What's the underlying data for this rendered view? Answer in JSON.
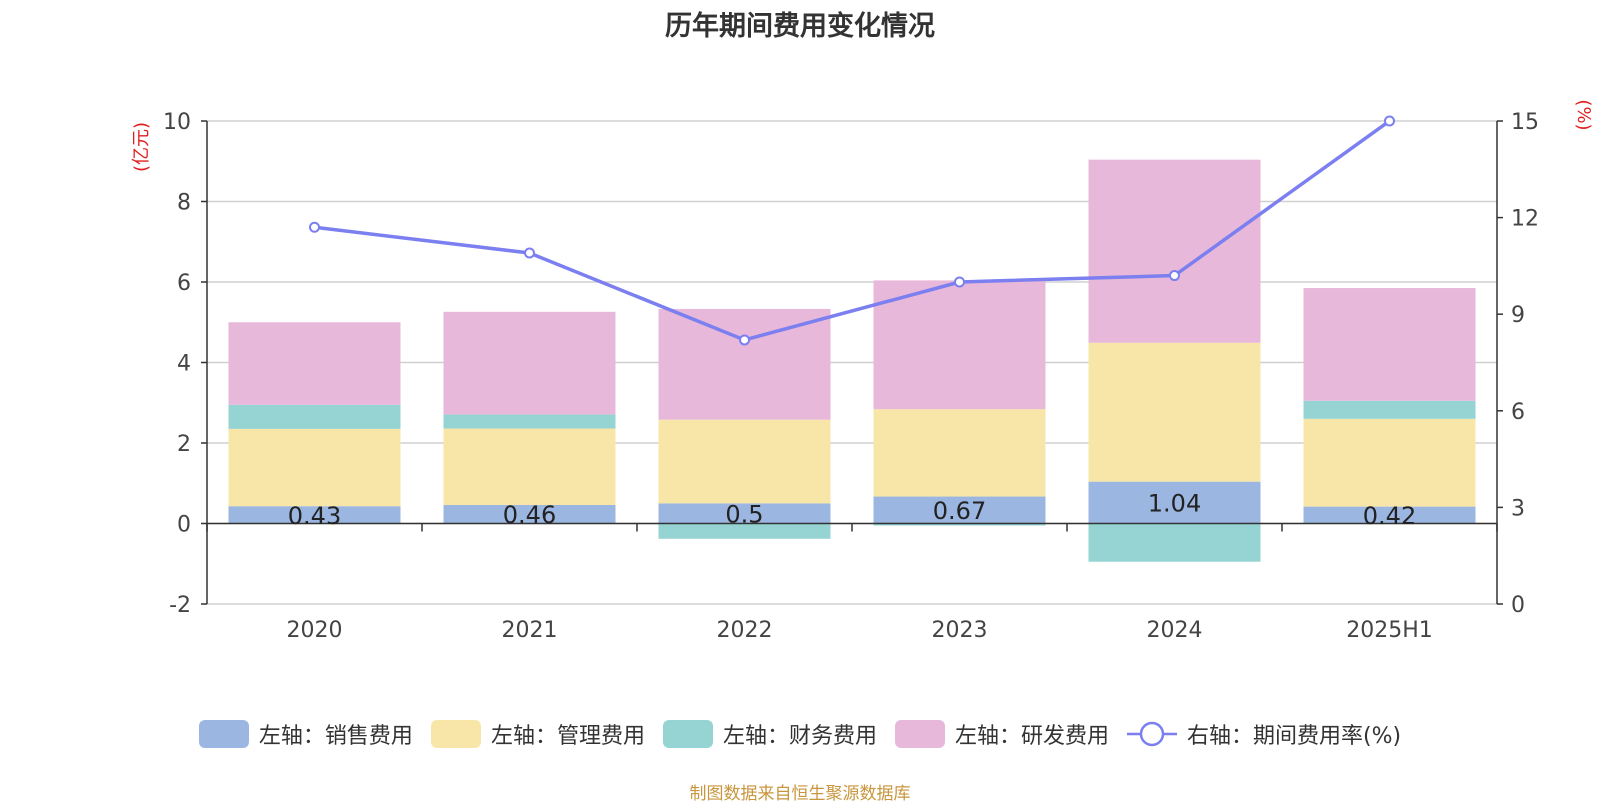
{
  "chart_data": {
    "type": "bar",
    "title": "历年期间费用变化情况",
    "categories": [
      "2020",
      "2021",
      "2022",
      "2023",
      "2024",
      "2025H1"
    ],
    "y_left": {
      "label": "(亿元)",
      "range": [
        -2,
        10
      ],
      "ticks": [
        -2,
        0,
        2,
        4,
        6,
        8,
        10
      ]
    },
    "y_right": {
      "label": "(%)",
      "range": [
        0,
        15
      ],
      "ticks": [
        0,
        3,
        6,
        9,
        12,
        15
      ]
    },
    "stacked": true,
    "grid": true,
    "legend_position": "bottom",
    "series": [
      {
        "name": "左轴：销售费用",
        "axis": "left",
        "type": "bar",
        "color": "#9bb6e0",
        "values": [
          0.43,
          0.46,
          0.5,
          0.67,
          1.04,
          0.42
        ],
        "show_labels": true
      },
      {
        "name": "左轴：管理费用",
        "axis": "left",
        "type": "bar",
        "color": "#f8e6a8",
        "values": [
          1.92,
          1.9,
          2.08,
          2.17,
          3.45,
          2.18
        ]
      },
      {
        "name": "左轴：财务费用",
        "axis": "left",
        "type": "bar",
        "color": "#96d4d4",
        "values": [
          0.6,
          0.35,
          -0.38,
          -0.05,
          -0.95,
          0.45
        ]
      },
      {
        "name": "左轴：研发费用",
        "axis": "left",
        "type": "bar",
        "color": "#e8b8da",
        "values": [
          2.05,
          2.55,
          2.75,
          3.2,
          4.55,
          2.8
        ]
      },
      {
        "name": "右轴：期间费用率(%)",
        "axis": "right",
        "type": "line",
        "color": "#7b7ff0",
        "values": [
          11.7,
          10.9,
          8.2,
          10.0,
          10.2,
          15.0
        ]
      }
    ]
  },
  "source_text": "制图数据来自恒生聚源数据库"
}
